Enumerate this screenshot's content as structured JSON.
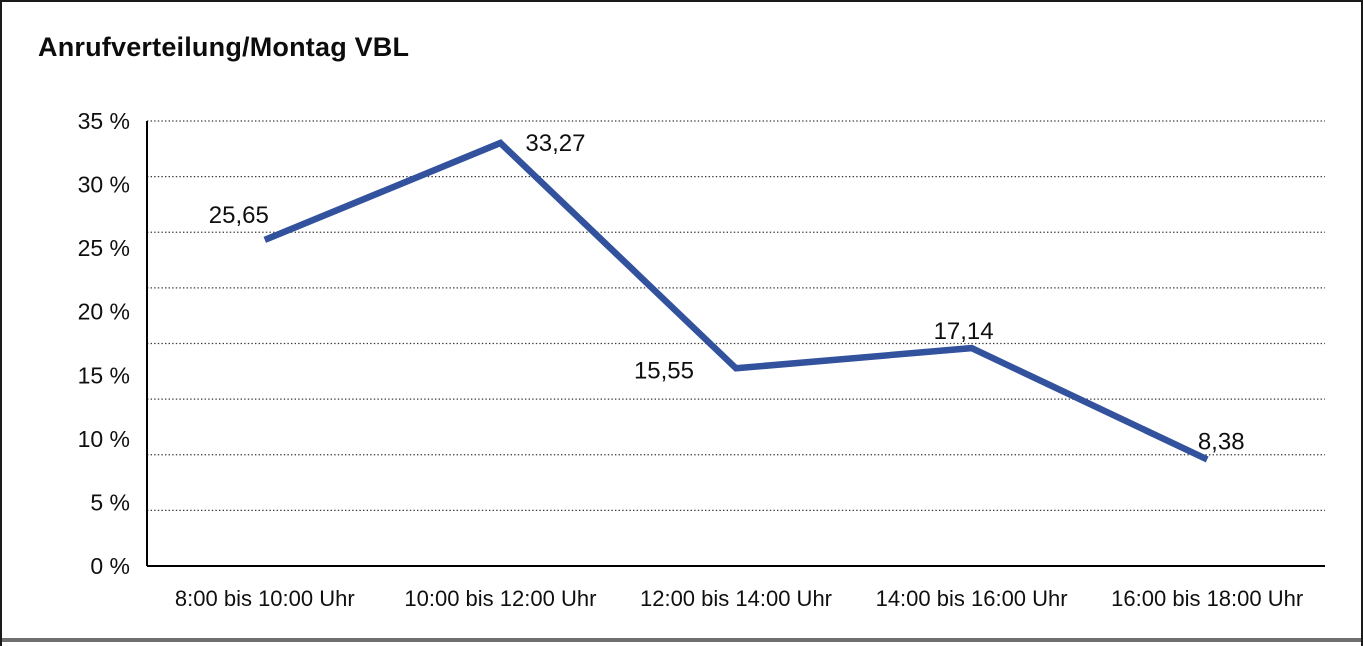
{
  "chart_data": {
    "type": "line",
    "title": "Anrufverteilung/Montag VBL",
    "categories": [
      "8:00 bis 10:00 Uhr",
      "10:00 bis 12:00 Uhr",
      "12:00 bis 14:00 Uhr",
      "14:00 bis 16:00 Uhr",
      "16:00 bis 18:00 Uhr"
    ],
    "values": [
      25.65,
      33.27,
      15.55,
      17.14,
      8.38
    ],
    "point_labels": [
      "25,65",
      "33,27",
      "15,55",
      "17,14",
      "8,38"
    ],
    "y_tick_labels": [
      "0 %",
      "5 %",
      "10 %",
      "15 %",
      "20 %",
      "25 %",
      "30 %",
      "35 %"
    ],
    "y_tick_step": 5,
    "ylim": [
      0,
      35
    ],
    "xlabel": "",
    "ylabel": "",
    "legend": "none",
    "grid": "horizontal-dotted",
    "line_color": "#33529D",
    "axis_color": "#000000",
    "grid_color": "#3a3a3a",
    "text_color": "#0f0f0f"
  }
}
